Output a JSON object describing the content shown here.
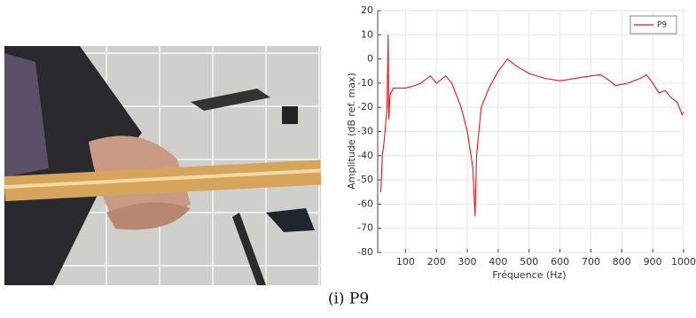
{
  "chart_data": {
    "type": "line",
    "x_label": "Fréquence (Hz)",
    "y_label": "Amplitude (dB ref. max)",
    "x": [
      20,
      25,
      30,
      35,
      40,
      44,
      46,
      50,
      60,
      80,
      100,
      130,
      150,
      180,
      200,
      230,
      250,
      280,
      300,
      318,
      325,
      330,
      345,
      370,
      400,
      430,
      460,
      500,
      550,
      600,
      650,
      700,
      730,
      750,
      780,
      820,
      860,
      880,
      900,
      920,
      940,
      960,
      980,
      995,
      1000
    ],
    "series": [
      {
        "name": "P9",
        "color": "#e8141a",
        "values": [
          -55,
          -40,
          -35,
          -28,
          -20,
          10,
          -25,
          -15,
          -12,
          -12,
          -12,
          -11,
          -10,
          -7,
          -10,
          -7,
          -10,
          -20,
          -30,
          -45,
          -65,
          -40,
          -20,
          -12,
          -5,
          0,
          -3,
          -6,
          -8,
          -9,
          -8,
          -7,
          -6.5,
          -8,
          -11,
          -10,
          -8,
          -6.5,
          -10,
          -14,
          -13,
          -16,
          -18,
          -23,
          -22
        ]
      }
    ],
    "xlim": [
      10,
      1000
    ],
    "ylim": [
      -80,
      20
    ],
    "xticks": [
      100,
      200,
      300,
      400,
      500,
      600,
      700,
      800,
      900,
      1000
    ],
    "yticks": [
      -80,
      -70,
      -60,
      -50,
      -40,
      -30,
      -20,
      -10,
      0,
      10,
      20
    ],
    "grid": true,
    "legend": "upper-right"
  },
  "caption": "(i) P9"
}
